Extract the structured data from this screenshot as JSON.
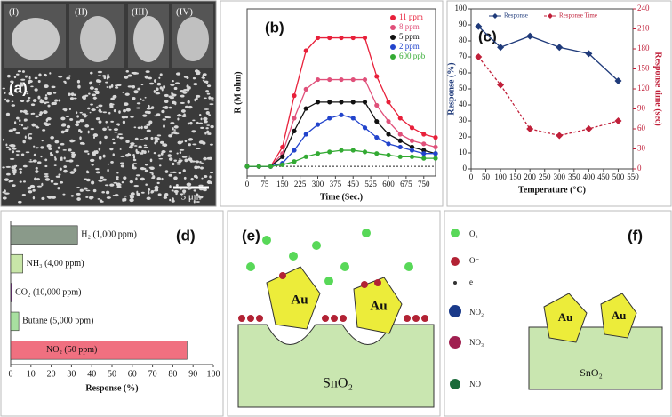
{
  "panel_labels": [
    "(a)",
    "(b)",
    "(c)",
    "(d)",
    "(e)",
    "(f)"
  ],
  "sem": {
    "insets": [
      "(I)",
      "(II)",
      "(III)",
      "(IV)"
    ],
    "scale_bar": "5 μm"
  },
  "diagram_e": {
    "labels": [
      "Au",
      "Au",
      "SnO₂"
    ]
  },
  "diagram_f": {
    "legend": [
      "O₂",
      "O⁻",
      "e",
      "NO₂",
      "NO₃⁻",
      "NO"
    ],
    "labels": [
      "Au",
      "Au",
      "SnO₂"
    ]
  },
  "chart_data": [
    {
      "type": "line",
      "xlabel": "Time (Sec.)",
      "ylabel": "R (M ohm)",
      "x": [
        0,
        50,
        100,
        150,
        200,
        250,
        300,
        350,
        400,
        450,
        500,
        550,
        600,
        650,
        700,
        750,
        800
      ],
      "xlim": [
        0,
        800
      ],
      "xticks": [
        0,
        75,
        150,
        225,
        300,
        375,
        450,
        525,
        600,
        675,
        750
      ],
      "ylim": [
        0,
        5.2
      ],
      "legend": "upper right",
      "series": [
        {
          "name": "11 ppm",
          "color": "#e8203a",
          "marker": "circle",
          "values": [
            0.3,
            0.3,
            0.3,
            0.9,
            2.5,
            3.9,
            4.3,
            4.3,
            4.3,
            4.3,
            4.3,
            3.1,
            2.3,
            1.8,
            1.5,
            1.3,
            1.2
          ]
        },
        {
          "name": "8 ppm",
          "color": "#e0507a",
          "marker": "circle",
          "values": [
            0.3,
            0.3,
            0.3,
            0.7,
            1.8,
            2.7,
            3.0,
            3.0,
            3.0,
            3.0,
            3.0,
            2.2,
            1.7,
            1.3,
            1.1,
            1.0,
            0.9
          ]
        },
        {
          "name": "5 ppm",
          "color": "#111111",
          "marker": "circle",
          "values": [
            0.3,
            0.3,
            0.3,
            0.6,
            1.4,
            2.1,
            2.3,
            2.3,
            2.3,
            2.3,
            2.3,
            1.7,
            1.3,
            1.1,
            0.9,
            0.8,
            0.7
          ]
        },
        {
          "name": "2 ppm",
          "color": "#2244cc",
          "marker": "circle",
          "values": [
            0.3,
            0.3,
            0.3,
            0.4,
            0.8,
            1.3,
            1.6,
            1.8,
            1.9,
            1.8,
            1.5,
            1.2,
            1.0,
            0.9,
            0.8,
            0.7,
            0.7
          ]
        },
        {
          "name": "600 ppb",
          "color": "#33aa33",
          "marker": "circle",
          "values": [
            0.3,
            0.3,
            0.3,
            0.35,
            0.45,
            0.6,
            0.7,
            0.75,
            0.8,
            0.8,
            0.75,
            0.7,
            0.65,
            0.6,
            0.6,
            0.55,
            0.55
          ]
        }
      ]
    },
    {
      "type": "line",
      "xlabel": "Temperature (°C)",
      "ylabel": "Response (%)",
      "y2label": "Response time (sec)",
      "x": [
        25,
        100,
        200,
        300,
        400,
        500
      ],
      "xlim": [
        0,
        550
      ],
      "xticks": [
        0,
        50,
        100,
        150,
        200,
        250,
        300,
        350,
        400,
        450,
        500,
        550
      ],
      "ylim": [
        0,
        100
      ],
      "yticks": [
        0,
        10,
        20,
        30,
        40,
        50,
        60,
        70,
        80,
        90,
        100
      ],
      "y2lim": [
        0,
        240
      ],
      "y2ticks": [
        0,
        30,
        60,
        90,
        120,
        150,
        180,
        210,
        240
      ],
      "legend": "upper center",
      "series": [
        {
          "name": "Response",
          "color": "#1f3a7a",
          "marker": "diamond",
          "values": [
            89,
            76,
            83,
            76,
            72,
            55
          ]
        },
        {
          "name": "Response Time",
          "color": "#c0203a",
          "marker": "diamond",
          "linestyle": "dashed",
          "axis": "y2",
          "values": [
            168,
            126,
            60,
            50,
            60,
            72
          ]
        }
      ]
    },
    {
      "type": "barh",
      "xlabel": "Response (%)",
      "categories": [
        "H₂ (1,000 ppm)",
        "NH₃ (4,00 ppm)",
        "CO₂ (10,000 ppm)",
        "Butane (5,000 ppm)",
        "NO₂ (50 ppm)"
      ],
      "values": [
        33,
        6,
        0.5,
        4,
        87
      ],
      "colors": [
        "#8a9a8a",
        "#c8e6a8",
        "#7a2a8a",
        "#a8e0a0",
        "#f07080"
      ],
      "xlim": [
        0,
        100
      ],
      "xticks": [
        0,
        10,
        20,
        30,
        40,
        50,
        60,
        70,
        80,
        90,
        100
      ]
    }
  ]
}
